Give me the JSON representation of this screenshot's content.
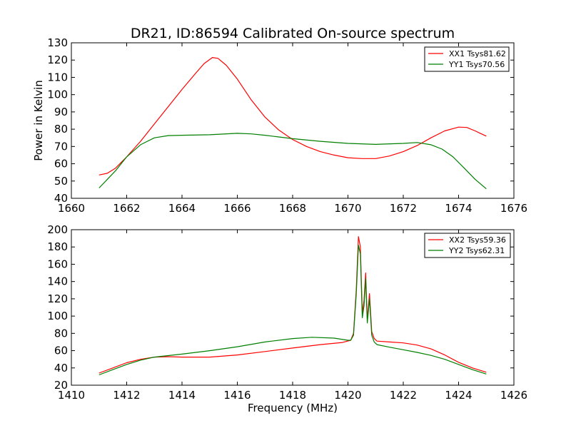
{
  "chart_data": [
    {
      "type": "line",
      "title": "DR21, ID:86594 Calibrated On-source spectrum",
      "xlabel": "",
      "ylabel": "Power in Kelvin",
      "xlim": [
        1660,
        1676
      ],
      "ylim": [
        40,
        130
      ],
      "xticks": [
        1660,
        1662,
        1664,
        1666,
        1668,
        1670,
        1672,
        1674,
        1676
      ],
      "yticks": [
        40,
        50,
        60,
        70,
        80,
        90,
        100,
        110,
        120,
        130
      ],
      "legend_position": "top-right",
      "series": [
        {
          "name": "XX1 Tsys81.62",
          "color": "#ff0000",
          "x": [
            1661.0,
            1661.3,
            1661.6,
            1662.0,
            1662.5,
            1663.0,
            1663.5,
            1664.0,
            1664.5,
            1664.8,
            1665.1,
            1665.3,
            1665.6,
            1666.0,
            1666.5,
            1667.0,
            1667.5,
            1668.0,
            1668.5,
            1669.0,
            1669.5,
            1670.0,
            1670.5,
            1671.0,
            1671.5,
            1672.0,
            1672.5,
            1673.0,
            1673.5,
            1674.0,
            1674.3,
            1674.6,
            1674.8,
            1675.0
          ],
          "y": [
            53.5,
            54.5,
            57.5,
            64,
            73,
            83,
            93,
            103,
            112.5,
            118,
            121.5,
            121,
            117,
            109,
            97,
            87,
            79.5,
            74,
            70,
            67,
            65,
            63.5,
            63,
            63,
            64.5,
            67,
            70.5,
            75,
            79,
            81.2,
            81,
            79,
            77.5,
            76
          ]
        },
        {
          "name": "YY1 Tsys70.56",
          "color": "#007f00",
          "x": [
            1661.0,
            1661.3,
            1661.6,
            1662.0,
            1662.5,
            1663.0,
            1663.5,
            1664.0,
            1665.0,
            1666.0,
            1666.5,
            1667.0,
            1667.5,
            1668.0,
            1669.0,
            1670.0,
            1671.0,
            1672.0,
            1672.5,
            1673.0,
            1673.4,
            1673.8,
            1674.2,
            1674.6,
            1675.0
          ],
          "y": [
            46,
            51,
            56,
            64,
            71,
            75,
            76.3,
            76.5,
            76.8,
            77.6,
            77.3,
            76.5,
            75.5,
            74.5,
            73,
            71.8,
            71.2,
            71.8,
            72.3,
            71,
            68.5,
            64,
            57.5,
            51,
            45.5
          ]
        }
      ]
    },
    {
      "type": "line",
      "title": "",
      "xlabel": "Frequency (MHz)",
      "ylabel": "",
      "xlim": [
        1410,
        1426
      ],
      "ylim": [
        20,
        200
      ],
      "xticks": [
        1410,
        1412,
        1414,
        1416,
        1418,
        1420,
        1422,
        1424,
        1426
      ],
      "yticks": [
        20,
        40,
        60,
        80,
        100,
        120,
        140,
        160,
        180,
        200
      ],
      "legend_position": "top-right",
      "series": [
        {
          "name": "XX2 Tsys59.36",
          "color": "#ff0000",
          "x": [
            1411.0,
            1411.5,
            1412.0,
            1412.5,
            1413.0,
            1413.5,
            1414.0,
            1415.0,
            1416.0,
            1417.0,
            1418.0,
            1419.0,
            1419.8,
            1420.1,
            1420.2,
            1420.3,
            1420.38,
            1420.45,
            1420.52,
            1420.58,
            1420.64,
            1420.7,
            1420.78,
            1420.86,
            1420.95,
            1421.05,
            1421.5,
            1422.0,
            1422.5,
            1423.0,
            1423.5,
            1424.0,
            1424.5,
            1425.0
          ],
          "y": [
            34,
            40,
            46,
            50,
            52.5,
            53,
            52.5,
            52.5,
            55,
            59,
            63,
            67,
            69.5,
            72,
            80,
            130,
            192,
            180,
            103,
            118,
            150,
            96,
            126,
            82,
            74,
            71,
            70,
            69,
            66.5,
            62,
            55,
            46.5,
            40,
            35
          ]
        },
        {
          "name": "YY2 Tsys62.31",
          "color": "#007f00",
          "x": [
            1411.0,
            1411.5,
            1412.0,
            1412.5,
            1413.0,
            1414.0,
            1415.0,
            1416.0,
            1417.0,
            1418.0,
            1418.7,
            1419.5,
            1420.0,
            1420.1,
            1420.2,
            1420.3,
            1420.38,
            1420.45,
            1420.52,
            1420.58,
            1420.64,
            1420.7,
            1420.78,
            1420.86,
            1420.95,
            1421.05,
            1421.5,
            1422.0,
            1422.5,
            1423.0,
            1423.5,
            1424.0,
            1424.5,
            1425.0
          ],
          "y": [
            32,
            38,
            44,
            49,
            52.5,
            56,
            60,
            64.5,
            70,
            74,
            75.5,
            74.5,
            72,
            72,
            78,
            125,
            182,
            172,
            98,
            112,
            143,
            92,
            120,
            78,
            70,
            67,
            64,
            61,
            58,
            54.5,
            50,
            44,
            38,
            33
          ]
        }
      ]
    }
  ]
}
